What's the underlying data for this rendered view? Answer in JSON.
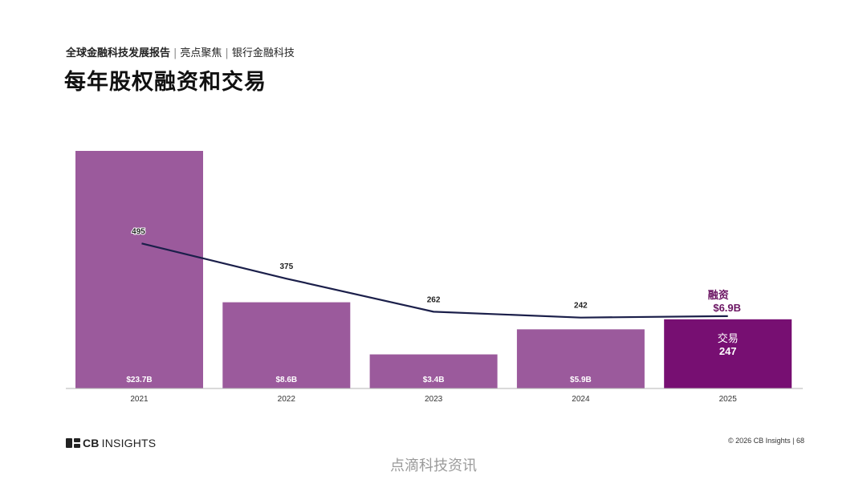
{
  "header": {
    "report": "全球金融科技发展报告",
    "section": "亮点聚焦",
    "topic": "银行金融科技",
    "title": "每年股权融资和交易"
  },
  "colors": {
    "bar": "#9b5a9c",
    "bar_highlight": "#770f72",
    "line": "#1b1f4a",
    "highlight_label": "#6b1563"
  },
  "chart_data": {
    "type": "bar+line",
    "categories": [
      "2021",
      "2022",
      "2023",
      "2024",
      "2025"
    ],
    "series": [
      {
        "name": "融资",
        "unit": "$B",
        "values": [
          23.7,
          8.6,
          3.4,
          5.9,
          6.9
        ],
        "labels": [
          "$23.7B",
          "$8.6B",
          "$3.4B",
          "$5.9B",
          "$6.9B"
        ]
      },
      {
        "name": "交易",
        "values": [
          495,
          375,
          262,
          242,
          247
        ],
        "labels": [
          "495",
          "375",
          "262",
          "242",
          "247"
        ]
      }
    ],
    "highlight_index": 4,
    "highlight_labels": {
      "funding_title": "融资",
      "funding_value": "$6.9B",
      "deals_title": "交易",
      "deals_value": "247"
    },
    "ylim_funding": [
      0,
      23.7
    ],
    "ylim_deals": [
      0,
      811
    ]
  },
  "footer": {
    "brand_icon": "cb-logo-icon",
    "brand_cb": "CB",
    "brand_insights": "INSIGHTS",
    "copyright": "© 2026 CB Insights  |  68"
  },
  "watermark": "点滴科技资讯"
}
